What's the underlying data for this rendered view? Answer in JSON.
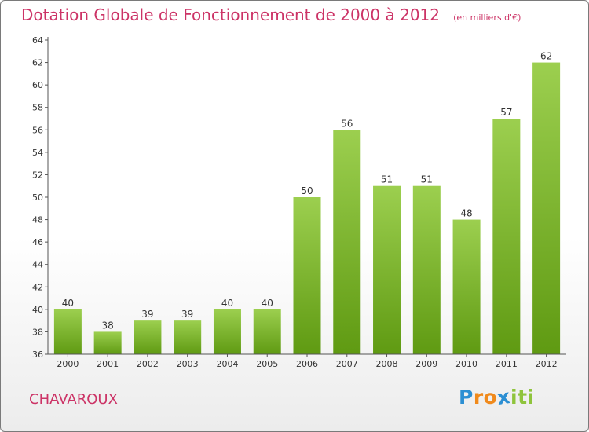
{
  "header": {
    "title": "Dotation Globale de Fonctionnement de 2000 à 2012",
    "unit": "(en milliers d'€)"
  },
  "footer": {
    "commune": "CHAVAROUX",
    "logo_text": "Proxiti",
    "logo_letters": [
      {
        "char": "P",
        "color": "#2c8fd3"
      },
      {
        "char": "r",
        "color": "#f08a1c"
      },
      {
        "char": "o",
        "color": "#f08a1c"
      },
      {
        "char": "x",
        "color": "#2c8fd3"
      },
      {
        "char": "i",
        "color": "#8fc43c"
      },
      {
        "char": "t",
        "color": "#8fc43c"
      },
      {
        "char": "i",
        "color": "#8fc43c"
      }
    ]
  },
  "chart_data": {
    "type": "bar",
    "categories": [
      "2000",
      "2001",
      "2002",
      "2003",
      "2004",
      "2005",
      "2006",
      "2007",
      "2008",
      "2009",
      "2010",
      "2011",
      "2012"
    ],
    "values": [
      40,
      38,
      39,
      39,
      40,
      40,
      50,
      56,
      51,
      51,
      48,
      57,
      62
    ],
    "ylim": [
      36,
      64
    ],
    "yticks": [
      36,
      38,
      40,
      42,
      44,
      46,
      48,
      50,
      52,
      54,
      56,
      58,
      60,
      62,
      64
    ],
    "grid": false,
    "colors": {
      "bar_top": "#9ccf4f",
      "bar_bottom": "#5f9a12",
      "axis": "#555555",
      "text": "#333333",
      "title": "#cc3366"
    }
  }
}
